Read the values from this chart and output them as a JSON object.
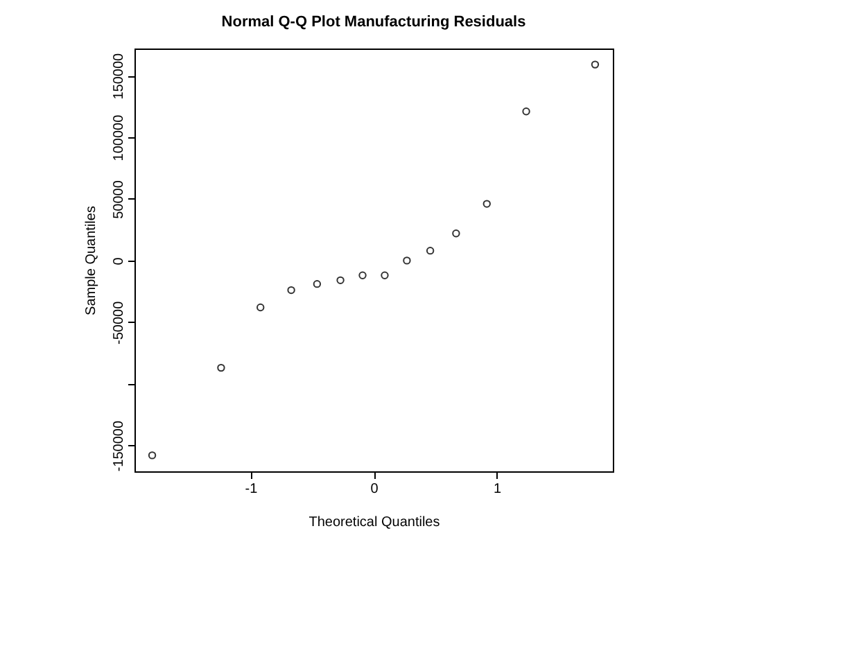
{
  "chart_data": {
    "type": "scatter",
    "title": "Normal Q-Q Plot Manufacturing Residuals",
    "xlabel": "Theoretical Quantiles",
    "ylabel": "Sample Quantiles",
    "x": [
      -1.8,
      -1.24,
      -0.92,
      -0.67,
      -0.46,
      -0.27,
      -0.09,
      0.09,
      0.27,
      0.46,
      0.67,
      0.92,
      1.24,
      1.8
    ],
    "series": [
      {
        "color": "#333333",
        "values": [
          -158000,
          -87000,
          -38000,
          -24000,
          -19000,
          -16000,
          -12000,
          -12000,
          0,
          8000,
          22000,
          46000,
          121000,
          159000
        ]
      }
    ],
    "xlim": [
      -1.944,
      1.944
    ],
    "ylim": [
      -171000,
      172000
    ],
    "xticks": [
      -1,
      0,
      1
    ],
    "yticks": [
      -150000,
      {
        "value": -100000,
        "label": null
      },
      -50000,
      0,
      50000,
      100000,
      150000
    ],
    "marker": "circle",
    "grid": false
  }
}
